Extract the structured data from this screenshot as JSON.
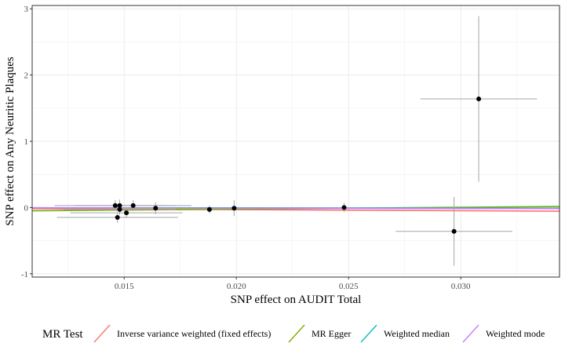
{
  "chart_data": {
    "type": "scatter",
    "xlabel": "SNP effect on AUDIT Total",
    "ylabel": "SNP effect on Any Neuritic Plaques",
    "xlim": [
      0.0109,
      0.0344
    ],
    "ylim": [
      -1.05,
      3.05
    ],
    "x_ticks": [
      0.015,
      0.02,
      0.025,
      0.03
    ],
    "x_tick_labels": [
      "0.015",
      "0.020",
      "0.025",
      "0.030"
    ],
    "y_ticks": [
      -1,
      0,
      1,
      2,
      3
    ],
    "y_tick_labels": [
      "-1",
      "0",
      "1",
      "2",
      "3"
    ],
    "grid": true,
    "legend_position": "bottom",
    "points": [
      {
        "x": 0.0146,
        "y": 0.03,
        "xerr": 0.0027,
        "yerr": 0.08
      },
      {
        "x": 0.0147,
        "y": -0.15,
        "xerr": 0.0027,
        "yerr": 0.08
      },
      {
        "x": 0.0148,
        "y": 0.03,
        "xerr": 0.002,
        "yerr": 0.09
      },
      {
        "x": 0.0148,
        "y": -0.03,
        "xerr": 0.0025,
        "yerr": 0.08
      },
      {
        "x": 0.0151,
        "y": -0.08,
        "xerr": 0.0025,
        "yerr": 0.08
      },
      {
        "x": 0.0154,
        "y": 0.03,
        "xerr": 0.0026,
        "yerr": 0.08
      },
      {
        "x": 0.0164,
        "y": -0.01,
        "xerr": 0.0015,
        "yerr": 0.09
      },
      {
        "x": 0.0188,
        "y": -0.03,
        "xerr": 0.0,
        "yerr": 0.06
      },
      {
        "x": 0.0199,
        "y": -0.01,
        "xerr": 0.0,
        "yerr": 0.12
      },
      {
        "x": 0.0248,
        "y": 0.0,
        "xerr": 0.0,
        "yerr": 0.07
      },
      {
        "x": 0.0297,
        "y": -0.36,
        "xerr": 0.0026,
        "yerr": 0.52
      },
      {
        "x": 0.0308,
        "y": 1.64,
        "xerr": 0.0026,
        "yerr": 1.25
      }
    ],
    "series": [
      {
        "name": "Inverse variance weighted (fixed effects)",
        "color": "#F8766D",
        "intercept": 0,
        "slope": -1.6
      },
      {
        "name": "MR Egger",
        "color": "#7CAE00",
        "intercept": -0.08,
        "slope": 2.8
      },
      {
        "name": "Weighted median",
        "color": "#00BFC4",
        "intercept": 0,
        "slope": -0.3
      },
      {
        "name": "Weighted mode",
        "color": "#C77CFF",
        "intercept": 0,
        "slope": -0.5
      }
    ],
    "legend_title": "MR Test"
  }
}
